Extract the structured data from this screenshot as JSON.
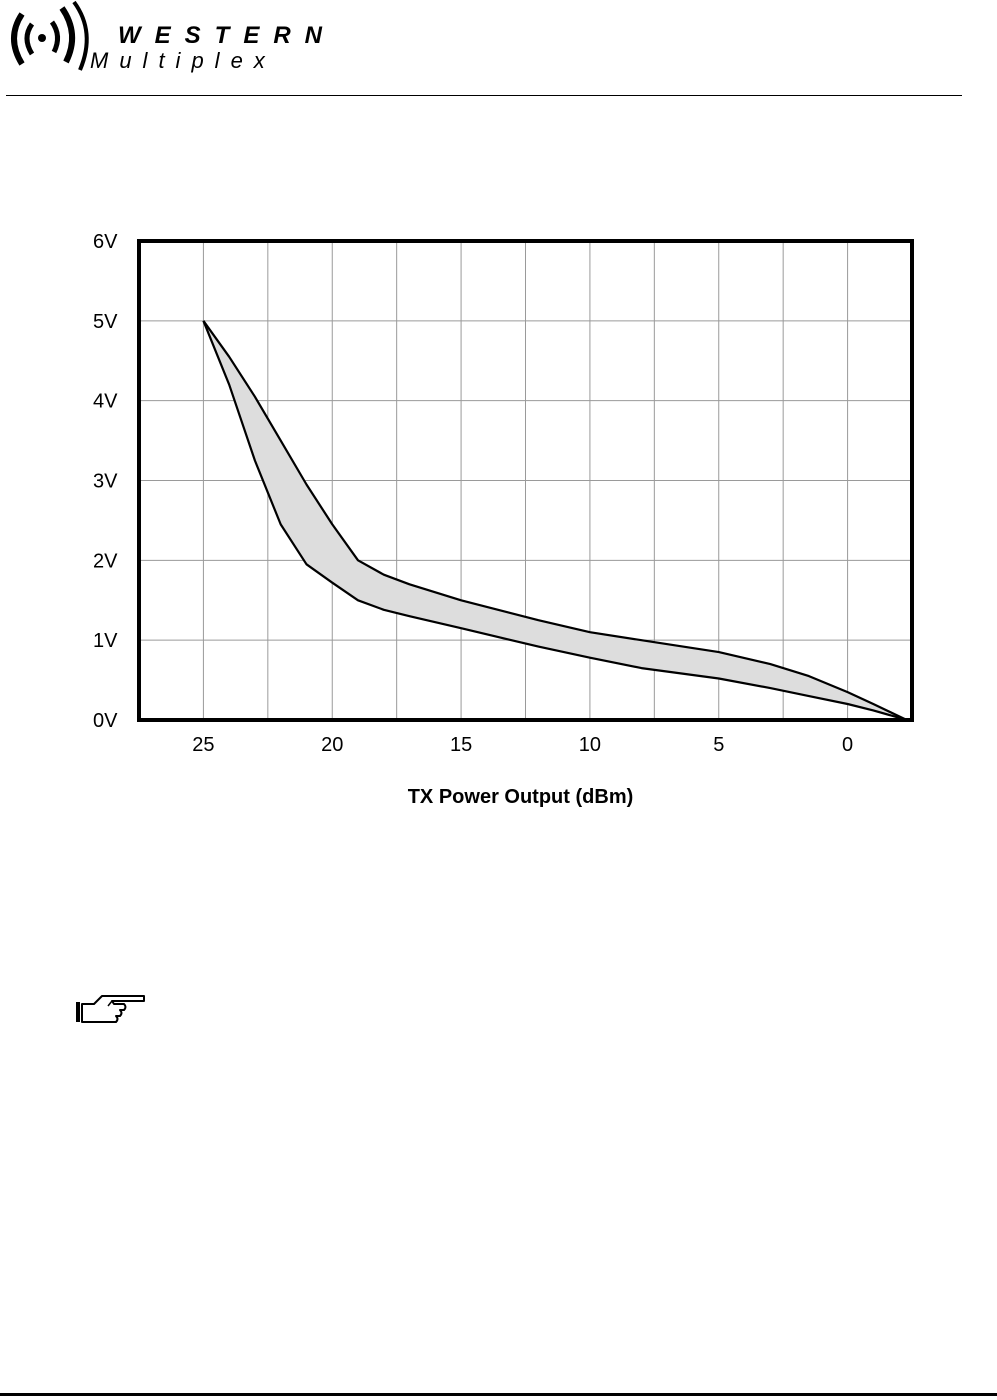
{
  "logo": {
    "line1": "WESTERN",
    "line2": "Multiplex"
  },
  "chart_data": {
    "type": "area",
    "title": "",
    "xlabel": "TX Power Output (dBm)",
    "ylabel": "",
    "xlim": [
      27.5,
      -2.5
    ],
    "ylim": [
      0,
      6
    ],
    "x_ticks": [
      "25",
      "20",
      "15",
      "10",
      "5",
      "0"
    ],
    "x_tick_values": [
      25,
      20,
      15,
      10,
      5,
      0
    ],
    "y_ticks": [
      "0V",
      "1V",
      "2V",
      "3V",
      "4V",
      "5V",
      "6V"
    ],
    "y_tick_values": [
      0,
      1,
      2,
      3,
      4,
      5,
      6
    ],
    "grid": true,
    "band_fill": "#dddddd",
    "upper": {
      "x": [
        25,
        24,
        23,
        22,
        21,
        20,
        19,
        18,
        17,
        15,
        12,
        10,
        8,
        5,
        3,
        1.5,
        0,
        -1,
        -2.3
      ],
      "y": [
        5.0,
        4.55,
        4.05,
        3.5,
        2.95,
        2.45,
        2.0,
        1.82,
        1.7,
        1.5,
        1.25,
        1.1,
        1.0,
        0.85,
        0.7,
        0.55,
        0.35,
        0.2,
        0.0
      ]
    },
    "lower": {
      "x": [
        25,
        24,
        23,
        22,
        21,
        20,
        19,
        18,
        17,
        15,
        12,
        10,
        8,
        5,
        3,
        1.5,
        0,
        -1,
        -2.3
      ],
      "y": [
        5.0,
        4.2,
        3.25,
        2.45,
        1.95,
        1.72,
        1.5,
        1.38,
        1.3,
        1.15,
        0.92,
        0.78,
        0.65,
        0.52,
        0.4,
        0.3,
        0.2,
        0.12,
        0.0
      ]
    }
  }
}
